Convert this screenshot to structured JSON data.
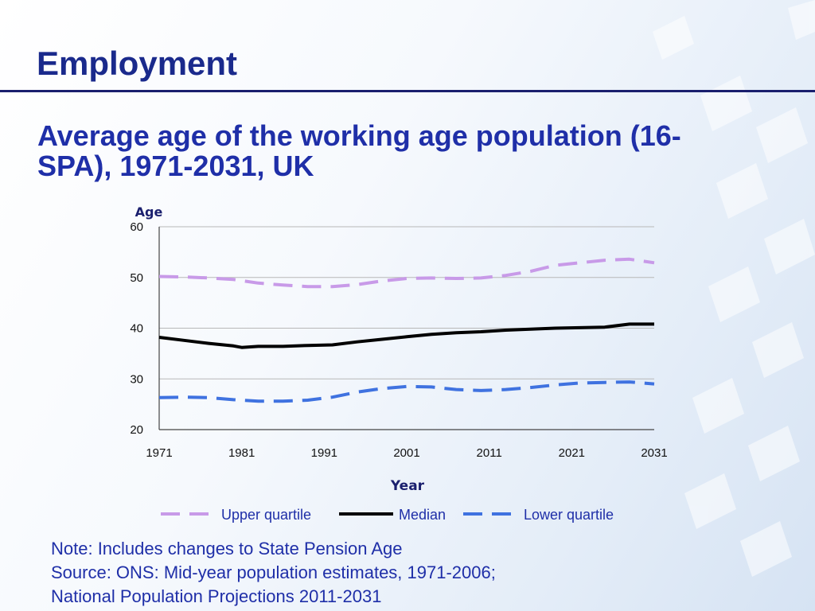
{
  "slide": {
    "title": "Employment",
    "subtitle": "Average age of the working age population (16-SPA), 1971-2031, UK"
  },
  "notes": {
    "line1": "Note: Includes changes to State Pension Age",
    "line2": "Source: ONS: Mid-year population estimates, 1971-2006;",
    "line3": "National Population Projections 2011-2031"
  },
  "colors": {
    "upper_quartile": "#c89ae8",
    "median": "#000000",
    "lower_quartile": "#3f72e0",
    "title": "#1a2a8c",
    "text": "#1f2fa8"
  },
  "chart_data": {
    "type": "line",
    "title": "",
    "xlabel": "Year",
    "ylabel": "Age",
    "xlim": [
      1971,
      2031
    ],
    "ylim": [
      20,
      60
    ],
    "xticks": [
      1971,
      1981,
      1991,
      2001,
      2011,
      2021,
      2031
    ],
    "yticks": [
      20,
      30,
      40,
      50,
      60
    ],
    "grid": "horizontal",
    "legend": "bottom",
    "series": [
      {
        "name": "Upper quartile",
        "style": "dashed",
        "x": [
          1971,
          1974,
          1977,
          1980,
          1983,
          1986,
          1989,
          1992,
          1995,
          1998,
          2001,
          2004,
          2007,
          2010,
          2013,
          2016,
          2019,
          2022,
          2025,
          2028,
          2031
        ],
        "values": [
          50.2,
          50.1,
          49.9,
          49.6,
          48.9,
          48.5,
          48.2,
          48.2,
          48.6,
          49.3,
          49.8,
          49.9,
          49.8,
          49.9,
          50.4,
          51.2,
          52.4,
          52.9,
          53.4,
          53.6,
          52.9
        ]
      },
      {
        "name": "Median",
        "style": "solid",
        "x": [
          1971,
          1974,
          1977,
          1980,
          1981,
          1983,
          1986,
          1989,
          1992,
          1995,
          1998,
          2001,
          2004,
          2007,
          2010,
          2013,
          2016,
          2019,
          2022,
          2025,
          2028,
          2031
        ],
        "values": [
          38.2,
          37.6,
          37.0,
          36.5,
          36.2,
          36.4,
          36.4,
          36.6,
          36.7,
          37.3,
          37.8,
          38.3,
          38.8,
          39.1,
          39.3,
          39.6,
          39.8,
          40.0,
          40.1,
          40.2,
          40.8,
          40.8
        ]
      },
      {
        "name": "Lower quartile",
        "style": "dashed",
        "x": [
          1971,
          1974,
          1977,
          1980,
          1983,
          1986,
          1989,
          1992,
          1995,
          1998,
          2001,
          2004,
          2007,
          2010,
          2013,
          2016,
          2019,
          2022,
          2025,
          2028,
          2031
        ],
        "values": [
          26.3,
          26.4,
          26.3,
          25.9,
          25.6,
          25.6,
          25.8,
          26.4,
          27.4,
          28.1,
          28.5,
          28.4,
          27.9,
          27.7,
          27.9,
          28.3,
          28.8,
          29.2,
          29.3,
          29.4,
          29.0
        ]
      }
    ]
  }
}
